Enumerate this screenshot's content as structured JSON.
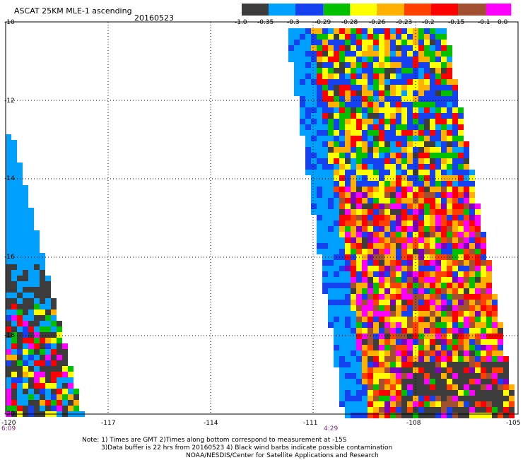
{
  "title": "ASCAT 25KM MLE-1 ascending",
  "date": "20160523",
  "colorbar": {
    "colors": [
      "#3c3c3c",
      "#00a0ff",
      "#1440f0",
      "#00c000",
      "#ffff00",
      "#ffb000",
      "#ff4000",
      "#ff0000",
      "#a05030",
      "#ff00ff",
      "#8000c0"
    ],
    "labels": [
      "-1.0",
      "-0.35",
      "-0.3",
      "-0.29",
      "-0.28",
      "-0.26",
      "-0.23",
      "-0.2",
      "-0.15",
      "-0.1",
      "0.0"
    ]
  },
  "map": {
    "lat_labels": [
      "-10",
      "-12",
      "-14",
      "-16",
      "-18",
      "-20"
    ],
    "lon_labels": [
      "-120",
      "-117",
      "-114",
      "-111",
      "-108",
      "-105"
    ],
    "time_labels": [
      "6:09",
      "4:29"
    ],
    "lat_range": [
      -20,
      -10
    ],
    "lon_range": [
      -120,
      -105
    ]
  },
  "notes": [
    "Note: 1) Times are GMT 2)Times along bottom correspond to measurement at -15S",
    "3)Data buffer is 22 hrs from 20160523 4) Black wind barbs indicate possible contamination",
    "NOAA/NESDIS/Center for Satellite Applications and Research"
  ]
}
